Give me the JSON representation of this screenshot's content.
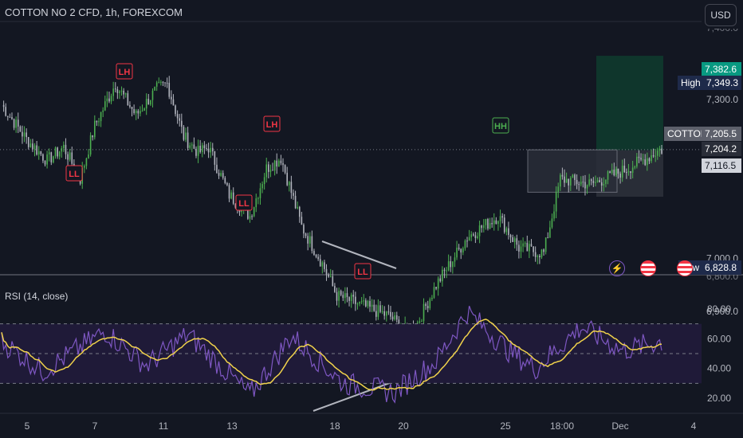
{
  "header": {
    "symbol_title": "COTTON NO 2 CFD, 1h, FOREXCOM",
    "currency_button": "USD"
  },
  "rsi_panel": {
    "title": "RSI (14, close)",
    "ticks": [
      "80.00",
      "60.00",
      "40.00",
      "20.00"
    ]
  },
  "price_axis": {
    "ticks": [
      "7,300.0",
      "7,000.0",
      "6,900.0"
    ],
    "partial_ticks": [
      "7,400.0",
      "6,800.0"
    ]
  },
  "x_axis": {
    "ticks": [
      "5",
      "7",
      "11",
      "13",
      "18",
      "20",
      "25",
      "18:00",
      "Dec",
      "4"
    ]
  },
  "price_labels": {
    "target": "7,382.6",
    "high_label": "High",
    "high_value": "7,349.3",
    "symbol_label": "COTTON",
    "last_price": "7,205.5",
    "entry": "7,204.2",
    "stop": "7,116.5",
    "low_label": "Low",
    "low_value": "6,828.8"
  },
  "pivot_labels": [
    "LL",
    "LH",
    "LL",
    "LH",
    "LL",
    "HH"
  ],
  "colors": {
    "background": "#131722",
    "up_candle": "#4caf50",
    "down_candle": "#b2b5be",
    "rsi_line": "#7e57c2",
    "rsi_ma": "#f0d24b",
    "rsi_band": "#1f1a38",
    "target_zone": "#0f3a2e",
    "stop_zone": "#2a2e39",
    "pivot_label": "#f23645",
    "pivot_hh": "#4caf50",
    "target_badge": "#089981",
    "dark_badge": "#1e2a4a"
  },
  "icons": [
    "lightning-icon",
    "us-flag-icon",
    "us-flag-icon"
  ],
  "chart_data": {
    "type": "candlestick",
    "title": "COTTON NO 2 CFD, 1h, FOREXCOM",
    "ylim": [
      6800,
      7420
    ],
    "y_ticks": [
      6900,
      7000,
      7300
    ],
    "key_levels": {
      "target": 7382.6,
      "high": 7349.3,
      "last": 7205.5,
      "entry": 7204.2,
      "stop": 7116.5,
      "low": 6828.8
    },
    "close_path_pivots": [
      {
        "i": 0,
        "v": 7290
      },
      {
        "i": 12,
        "v": 7225
      },
      {
        "i": 22,
        "v": 7185
      },
      {
        "i": 30,
        "v": 7210
      },
      {
        "i": 38,
        "v": 7150
      },
      {
        "i": 45,
        "v": 7250
      },
      {
        "i": 55,
        "v": 7330
      },
      {
        "i": 65,
        "v": 7270
      },
      {
        "i": 75,
        "v": 7320
      },
      {
        "i": 80,
        "v": 7330
      },
      {
        "i": 88,
        "v": 7230
      },
      {
        "i": 95,
        "v": 7200
      },
      {
        "i": 100,
        "v": 7210
      },
      {
        "i": 110,
        "v": 7120
      },
      {
        "i": 120,
        "v": 7080
      },
      {
        "i": 128,
        "v": 7170
      },
      {
        "i": 135,
        "v": 7190
      },
      {
        "i": 145,
        "v": 7060
      },
      {
        "i": 155,
        "v": 6990
      },
      {
        "i": 162,
        "v": 6930
      },
      {
        "i": 175,
        "v": 6910
      },
      {
        "i": 188,
        "v": 6890
      },
      {
        "i": 196,
        "v": 6860
      },
      {
        "i": 200,
        "v": 6870
      },
      {
        "i": 210,
        "v": 6950
      },
      {
        "i": 225,
        "v": 7040
      },
      {
        "i": 240,
        "v": 7080
      },
      {
        "i": 250,
        "v": 7020
      },
      {
        "i": 262,
        "v": 7010
      },
      {
        "i": 270,
        "v": 7150
      },
      {
        "i": 285,
        "v": 7140
      },
      {
        "i": 300,
        "v": 7165
      },
      {
        "i": 312,
        "v": 7190
      },
      {
        "i": 318,
        "v": 7205.5
      }
    ],
    "rsi_pivots": [
      {
        "i": 0,
        "v": 58
      },
      {
        "i": 20,
        "v": 38
      },
      {
        "i": 50,
        "v": 65
      },
      {
        "i": 70,
        "v": 42
      },
      {
        "i": 90,
        "v": 63
      },
      {
        "i": 120,
        "v": 22
      },
      {
        "i": 140,
        "v": 62
      },
      {
        "i": 165,
        "v": 30
      },
      {
        "i": 190,
        "v": 24
      },
      {
        "i": 210,
        "v": 45
      },
      {
        "i": 225,
        "v": 78
      },
      {
        "i": 245,
        "v": 52
      },
      {
        "i": 258,
        "v": 40
      },
      {
        "i": 280,
        "v": 68
      },
      {
        "i": 300,
        "v": 52
      },
      {
        "i": 318,
        "v": 58
      }
    ],
    "rsi_ylim": [
      10,
      88
    ],
    "rsi_levels": [
      70,
      50,
      30
    ]
  }
}
